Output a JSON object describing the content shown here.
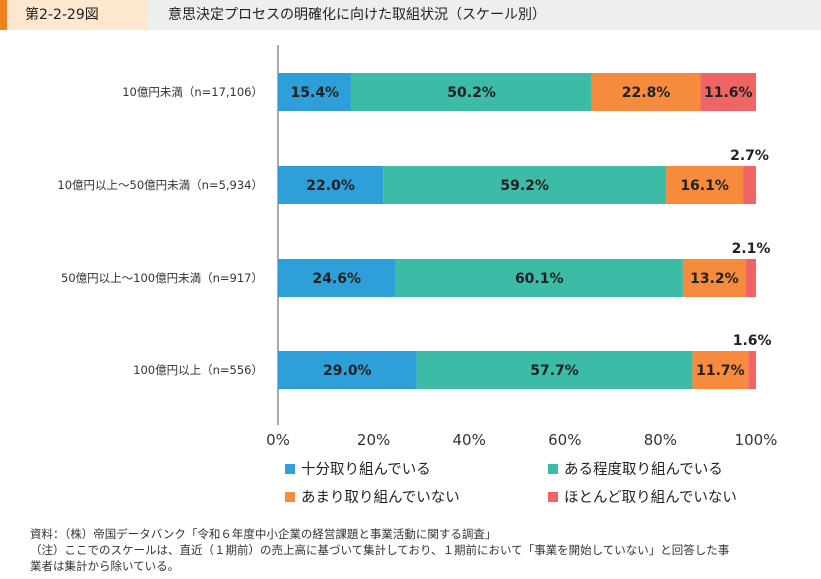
{
  "header": {
    "figure_number": "第2-2-29図",
    "title": "意思決定プロセスの明確化に向けた取組状況（スケール別）"
  },
  "chart_data": {
    "type": "bar",
    "orientation": "horizontal",
    "stacked": true,
    "categories": [
      "10億円未満（n=17,106）",
      "10億円以上～50億円未満（n=5,934）",
      "50億円以上～100億円未満（n=917）",
      "100億円以上（n=556）"
    ],
    "series": [
      {
        "name": "十分取り組んでいる",
        "color": "#2e9fd9",
        "values": [
          15.4,
          22.0,
          24.6,
          29.0
        ],
        "labels": [
          "15.4%",
          "22.0%",
          "24.6%",
          "29.0%"
        ]
      },
      {
        "name": "ある程度取り組んでいる",
        "color": "#3cbba7",
        "values": [
          50.2,
          59.2,
          60.1,
          57.7
        ],
        "labels": [
          "50.2%",
          "59.2%",
          "60.1%",
          "57.7%"
        ]
      },
      {
        "name": "あまり取り組んでいない",
        "color": "#f68b3d",
        "values": [
          22.8,
          16.1,
          13.2,
          11.7
        ],
        "labels": [
          "22.8%",
          "16.1%",
          "13.2%",
          "11.7%"
        ]
      },
      {
        "name": "ほとんど取り組んでいない",
        "color": "#ef6464",
        "values": [
          11.6,
          2.7,
          2.1,
          1.6
        ],
        "labels": [
          "11.6%",
          "2.7%",
          "2.1%",
          "1.6%"
        ]
      }
    ],
    "xlim": [
      0,
      100
    ],
    "ticks": [
      "0%",
      "20%",
      "40%",
      "60%",
      "80%",
      "100%"
    ],
    "legend_placement": "bottom",
    "grid": false
  },
  "notes": {
    "source": "資料：（株）帝国データバンク「令和６年度中小企業の経営課題と事業活動に関する調査」",
    "note_line1": "（注）ここでのスケールは、直近（１期前）の売上高に基づいて集計しており、１期前において「事業を開始していない」と回答した事",
    "note_line2": "業者は集計から除いている。"
  }
}
